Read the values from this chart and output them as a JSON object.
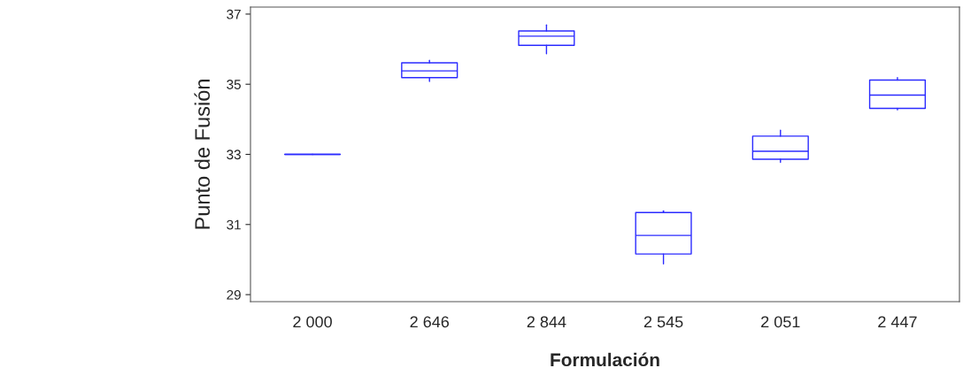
{
  "chart_data": {
    "type": "box",
    "xlabel": "Formulación",
    "ylabel": "Punto de Fusión",
    "categories": [
      "2 000",
      "2 646",
      "2 844",
      "2 545",
      "2 051",
      "2 447"
    ],
    "series": [
      {
        "color": "#2b2bff",
        "boxes": [
          {
            "low": 33,
            "q1": 33,
            "median": 33,
            "q3": 33,
            "high": 33
          },
          {
            "low": 35.08,
            "q1": 35.19,
            "median": 35.38,
            "q3": 35.61,
            "high": 35.68
          },
          {
            "low": 35.87,
            "q1": 36.11,
            "median": 36.37,
            "q3": 36.52,
            "high": 36.69
          },
          {
            "low": 29.88,
            "q1": 30.16,
            "median": 30.69,
            "q3": 31.34,
            "high": 31.39
          },
          {
            "low": 32.77,
            "q1": 32.86,
            "median": 33.09,
            "q3": 33.52,
            "high": 33.69
          },
          {
            "low": 34.27,
            "q1": 34.31,
            "median": 34.69,
            "q3": 35.12,
            "high": 35.19
          }
        ]
      }
    ],
    "ylim": [
      28.8,
      37.2
    ],
    "yticks": [
      29,
      31,
      33,
      35,
      37
    ],
    "grid": false,
    "legend": false
  }
}
